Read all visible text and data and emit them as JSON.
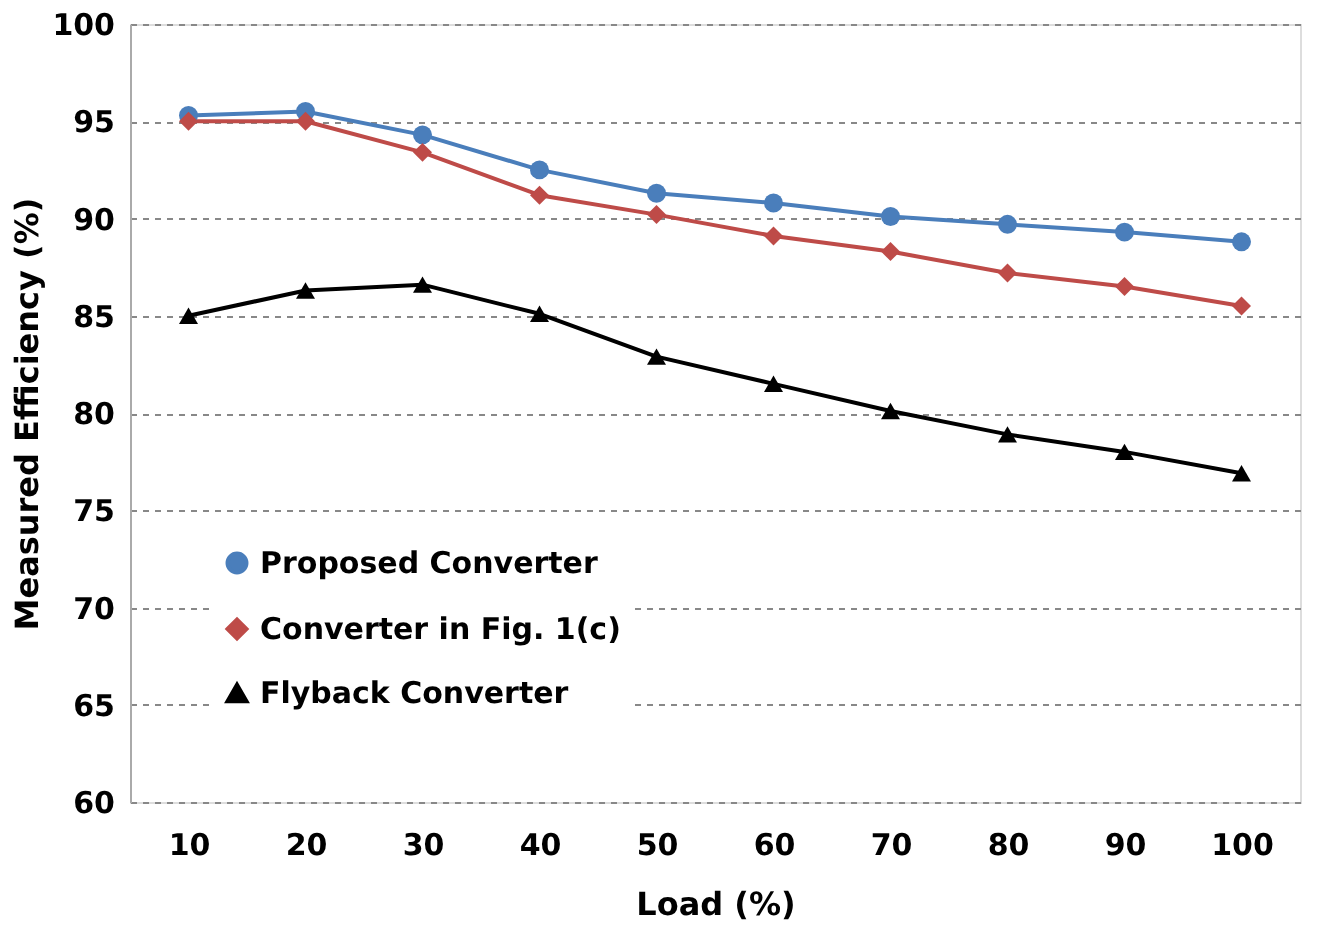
{
  "chart_data": {
    "type": "line",
    "xlabel": "Load (%)",
    "ylabel": "Measured Efficiency (%)",
    "categories": [
      "10",
      "20",
      "30",
      "40",
      "50",
      "60",
      "70",
      "80",
      "90",
      "100"
    ],
    "ylim": [
      60,
      100
    ],
    "yticks": [
      60,
      65,
      70,
      75,
      80,
      85,
      90,
      95,
      100
    ],
    "grid": "y",
    "legend": "bottom left",
    "line_style": "solid",
    "series": [
      {
        "name": "Proposed Converter",
        "color": "#4a7ebb",
        "marker": "circle",
        "values": [
          95.3,
          95.5,
          94.3,
          92.5,
          91.3,
          90.8,
          90.1,
          89.7,
          89.3,
          88.8
        ]
      },
      {
        "name": "Converter in Fig. 1(c)",
        "color": "#be4b48",
        "marker": "diamond",
        "values": [
          95.0,
          95.0,
          93.4,
          91.2,
          90.2,
          89.1,
          88.3,
          87.2,
          86.5,
          85.5
        ]
      },
      {
        "name": "Flyback Converter",
        "color": "#000000",
        "marker": "triangle",
        "values": [
          85.0,
          86.3,
          86.6,
          85.1,
          82.9,
          81.5,
          80.1,
          78.9,
          78.0,
          76.9
        ]
      }
    ]
  }
}
